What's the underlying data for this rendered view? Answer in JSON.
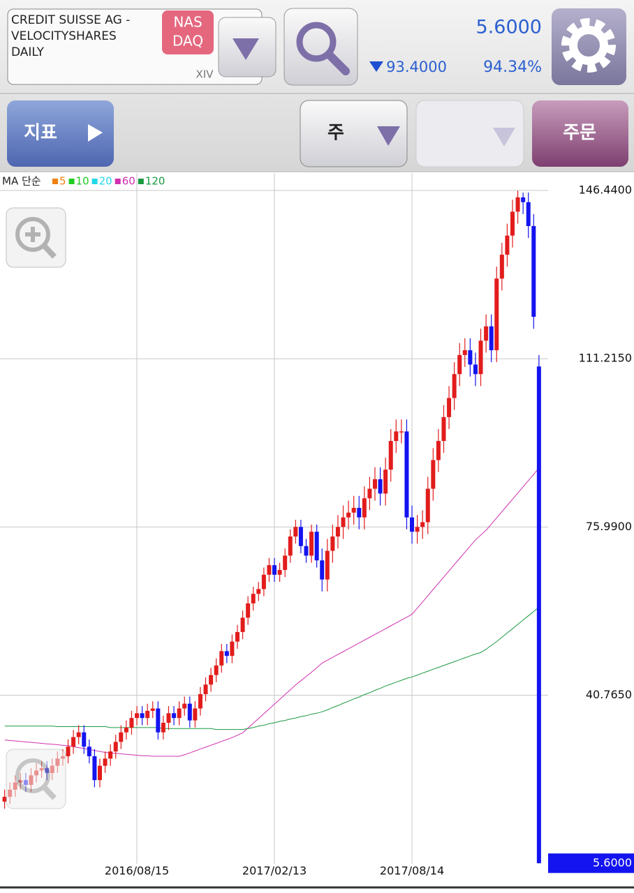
{
  "header": {
    "name_lines": [
      "CREDIT SUISSE AG -",
      "VELOCITYSHARES",
      "DAILY"
    ],
    "exchange_lines": [
      "NAS",
      "DAQ"
    ],
    "ticker": "XIV",
    "price": "5.6000",
    "change": "93.4000",
    "change_pct": "94.34%"
  },
  "toolbar": {
    "indicator": "지표",
    "period": "주",
    "order": "주문"
  },
  "chart_data": {
    "type": "candlestick",
    "legend_title": "MA 단순",
    "up_color": "#e21c1c",
    "down_color": "#1414f0",
    "categories": [
      null,
      null,
      null,
      null,
      null,
      null,
      null,
      null,
      null,
      null,
      null,
      null,
      null,
      null,
      null,
      null,
      null,
      null,
      null,
      null,
      null,
      null,
      null,
      null,
      null,
      "2016/08/15",
      null,
      null,
      null,
      null,
      null,
      null,
      null,
      null,
      null,
      null,
      null,
      null,
      null,
      null,
      null,
      null,
      null,
      null,
      null,
      null,
      null,
      null,
      null,
      null,
      null,
      "2017/02/13",
      null,
      null,
      null,
      null,
      null,
      null,
      null,
      null,
      null,
      null,
      null,
      null,
      null,
      null,
      null,
      null,
      null,
      null,
      null,
      null,
      null,
      null,
      null,
      null,
      null,
      "2017/08/14",
      null,
      null,
      null,
      null,
      null,
      null,
      null,
      null,
      null,
      null,
      null,
      null,
      null,
      null,
      null,
      null,
      null,
      null,
      null,
      null,
      null,
      null,
      null,
      null
    ],
    "open": [
      18.5,
      19.5,
      21,
      22.5,
      23,
      22,
      24,
      25,
      25.5,
      24.5,
      26,
      27.5,
      28,
      30,
      32,
      33,
      30,
      28,
      23,
      26,
      27.5,
      29,
      31,
      33,
      34,
      36,
      37,
      36,
      37.5,
      38,
      33,
      35,
      37,
      36,
      38,
      39,
      35.5,
      38,
      41,
      43,
      45,
      47,
      50,
      49,
      52,
      54,
      57,
      60,
      62,
      63,
      66,
      68,
      66,
      67,
      70,
      74,
      76,
      72,
      70,
      75,
      69,
      65,
      71,
      74,
      76,
      78,
      79,
      80,
      78,
      82,
      84,
      86,
      83,
      88,
      94,
      96,
      96,
      78,
      75,
      76,
      77,
      84,
      90,
      94,
      99,
      103,
      108,
      112,
      113,
      110,
      108,
      115,
      118,
      113,
      128,
      133,
      137,
      142,
      145,
      144,
      139,
      109.6
    ],
    "high": [
      21,
      22.5,
      24,
      24.5,
      24.5,
      25.5,
      26.5,
      27,
      27,
      27.5,
      29,
      29.5,
      31.5,
      33.5,
      34.5,
      34.5,
      31.5,
      29.5,
      27.5,
      29,
      30.5,
      32.5,
      34.5,
      35.5,
      37.5,
      38.5,
      38.5,
      39,
      39.5,
      39.5,
      36.5,
      38.5,
      38.5,
      39.5,
      40.5,
      40.5,
      39.5,
      42.5,
      44.5,
      46.5,
      48.5,
      51.5,
      51.5,
      53.5,
      55.5,
      58.5,
      61.5,
      63.5,
      64.5,
      67.5,
      69.5,
      69.5,
      68.5,
      71.5,
      75.5,
      77.5,
      77.5,
      73.5,
      76.5,
      76.5,
      71.5,
      73.5,
      76.5,
      78.5,
      80.5,
      81.5,
      82.5,
      82.5,
      84.5,
      86.5,
      88.5,
      88.5,
      90.5,
      96.5,
      98.5,
      98.5,
      98.5,
      80.5,
      78.5,
      79.5,
      86.5,
      92.5,
      96.5,
      101.5,
      105.5,
      110.5,
      114.5,
      115.5,
      115.5,
      112.5,
      117.5,
      120.5,
      120.5,
      130.5,
      135.5,
      139.5,
      144.5,
      146.4,
      146,
      146,
      141.5,
      112
    ],
    "low": [
      17,
      18,
      19.5,
      21,
      20.5,
      20.5,
      22.5,
      23.5,
      23,
      23,
      24.5,
      26,
      26.5,
      28.5,
      30.5,
      28.5,
      26.5,
      21.5,
      21.5,
      24.5,
      26,
      27.5,
      29.5,
      31.5,
      32.5,
      34.5,
      34.5,
      34.5,
      36,
      31.5,
      31.5,
      33.5,
      34.5,
      34.5,
      36.5,
      34,
      34,
      36.5,
      39.5,
      41.5,
      43.5,
      45.5,
      47.5,
      47.5,
      50.5,
      52.5,
      55.5,
      58.5,
      60.5,
      61.5,
      64.5,
      64.5,
      64.5,
      65.5,
      68.5,
      72.5,
      70.5,
      68.5,
      68.5,
      67.5,
      62.5,
      62.5,
      68.5,
      71.5,
      73.5,
      75.5,
      76.5,
      75.5,
      75.5,
      79.5,
      81.5,
      80.5,
      80.5,
      85.5,
      91.5,
      93.5,
      75.5,
      72.5,
      72.5,
      73.5,
      74.5,
      81.5,
      87.5,
      91.5,
      96.5,
      100.5,
      105.5,
      109.5,
      107.5,
      105.5,
      105.5,
      112.5,
      110.5,
      110.5,
      125.5,
      130.5,
      134.5,
      139.5,
      141.5,
      136.5,
      117.5,
      5.6
    ],
    "close": [
      19.5,
      21,
      22.5,
      23,
      22,
      24,
      25,
      25.5,
      24.5,
      26,
      27.5,
      28,
      30,
      32,
      33,
      30,
      28,
      23,
      26,
      27.5,
      29,
      31,
      33,
      34,
      36,
      37,
      36,
      37.5,
      38,
      33,
      35,
      37,
      36,
      38,
      39,
      35.5,
      38,
      41,
      43,
      45,
      47,
      50,
      49,
      52,
      54,
      57,
      60,
      62,
      63,
      66,
      68,
      66,
      67,
      70,
      74,
      76,
      72,
      70,
      75,
      69,
      65,
      71,
      74,
      76,
      78,
      79,
      80,
      78,
      82,
      84,
      86,
      83,
      88,
      94,
      96,
      96,
      78,
      75,
      76,
      77,
      84,
      90,
      94,
      99,
      103,
      108,
      112,
      113,
      110,
      108,
      115,
      118,
      113,
      128,
      133,
      137,
      142,
      145,
      144,
      139,
      120,
      5.6
    ],
    "ma": [
      {
        "name": "5",
        "color": "#f08010"
      },
      {
        "name": "10",
        "color": "#22cc22"
      },
      {
        "name": "20",
        "color": "#22d8e8"
      },
      {
        "name": "60",
        "color": "#d030b0",
        "values": [
          31.4,
          31.3,
          31.2,
          31.1,
          31.0,
          30.9,
          30.8,
          30.7,
          30.6,
          30.5,
          30.4,
          30.3,
          30.2,
          30.0,
          29.8,
          29.6,
          29.4,
          29.2,
          29.0,
          28.8,
          28.7,
          28.6,
          28.5,
          28.4,
          28.3,
          28.2,
          28.1,
          28.1,
          28.0,
          28.0,
          28.0,
          28.0,
          28.0,
          28.0,
          28.3,
          28.7,
          29.1,
          29.5,
          29.9,
          30.3,
          30.7,
          31.1,
          31.5,
          31.9,
          32.4,
          32.9,
          33.9,
          34.9,
          35.9,
          36.9,
          37.9,
          38.9,
          39.9,
          40.9,
          41.9,
          42.9,
          43.8,
          44.7,
          45.6,
          46.5,
          47.5,
          48.1,
          48.7,
          49.3,
          49.9,
          50.5,
          51.1,
          51.7,
          52.3,
          52.9,
          53.5,
          54.1,
          54.7,
          55.3,
          55.9,
          56.5,
          57.1,
          57.7,
          59.0,
          60.3,
          61.6,
          62.9,
          64.2,
          65.5,
          66.8,
          68.1,
          69.4,
          70.7,
          72.0,
          73.3,
          74.3,
          75.3,
          76.6,
          77.9,
          79.2,
          80.5,
          81.8,
          83.1,
          84.4,
          85.7,
          87.0,
          88.4
        ]
      },
      {
        "name": "120",
        "color": "#1a9a40",
        "values": [
          34.3,
          34.3,
          34.3,
          34.3,
          34.3,
          34.3,
          34.3,
          34.3,
          34.3,
          34.3,
          34.2,
          34.2,
          34.2,
          34.2,
          34.2,
          34.2,
          34.2,
          34.2,
          34.2,
          34.2,
          34.0,
          34.0,
          34.0,
          34.0,
          34.0,
          34.0,
          34.0,
          34.0,
          34.0,
          34.0,
          33.8,
          33.8,
          33.8,
          33.8,
          33.8,
          33.8,
          33.8,
          33.8,
          33.8,
          33.8,
          33.6,
          33.6,
          33.6,
          33.6,
          33.6,
          33.6,
          33.8,
          34.0,
          34.3,
          34.5,
          34.8,
          35.0,
          35.3,
          35.5,
          35.8,
          36.0,
          36.3,
          36.5,
          36.8,
          37.0,
          37.3,
          37.7,
          38.2,
          38.6,
          39.1,
          39.5,
          40.0,
          40.4,
          40.9,
          41.3,
          41.8,
          42.2,
          42.7,
          43.1,
          43.5,
          43.9,
          44.3,
          44.6,
          45.0,
          45.4,
          45.8,
          46.2,
          46.6,
          47.0,
          47.4,
          47.8,
          48.2,
          48.6,
          49.0,
          49.4,
          49.7,
          50.4,
          51.2,
          52.0,
          52.9,
          53.8,
          54.7,
          55.6,
          56.5,
          57.4,
          58.3,
          59.2
        ]
      }
    ],
    "ylim": [
      5.5,
      150.1
    ],
    "yticks": [
      {
        "value": 146.44,
        "label": "146.4400"
      },
      {
        "value": 111.215,
        "label": "111.2150"
      },
      {
        "value": 75.99,
        "label": "75.9900"
      },
      {
        "value": 40.765,
        "label": "40.7650"
      }
    ],
    "last_price": {
      "value": 5.6,
      "label": "5.6000"
    },
    "grid": true
  }
}
